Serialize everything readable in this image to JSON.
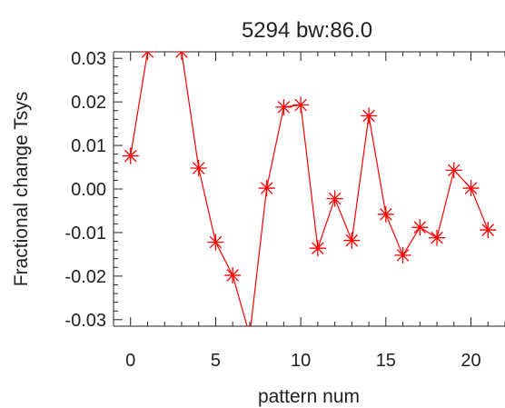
{
  "chart_data": {
    "type": "line",
    "title": "5294 bw:86.0",
    "xlabel": "pattern num",
    "ylabel": "Fractional change Tsys",
    "xlim": [
      -1,
      22
    ],
    "ylim": [
      -0.0315,
      0.0315
    ],
    "x_ticks": [
      0,
      5,
      10,
      15,
      20
    ],
    "x_tick_labels": [
      "0",
      "5",
      "10",
      "15",
      "20"
    ],
    "y_ticks": [
      -0.03,
      -0.02,
      -0.01,
      0.0,
      0.01,
      0.02,
      0.03
    ],
    "y_tick_labels": [
      "-0.03",
      "-0.02",
      "-0.01",
      "0.00",
      "0.01",
      "0.02",
      "0.03"
    ],
    "grid": false,
    "series": [
      {
        "color": "#ff0000",
        "marker": "asterisk",
        "x": [
          0,
          1,
          2,
          3,
          4,
          5,
          6,
          7,
          8,
          9,
          10,
          11,
          12,
          13,
          14,
          15,
          16,
          17,
          18,
          19,
          20,
          21
        ],
        "y": [
          0.0076,
          0.0315,
          0.0336,
          0.0315,
          0.0048,
          -0.0122,
          -0.0198,
          -0.0336,
          0.0002,
          0.0188,
          0.0193,
          -0.0136,
          -0.0022,
          -0.0118,
          0.0168,
          -0.0058,
          -0.0152,
          -0.0088,
          -0.0112,
          0.0043,
          0.0002,
          -0.0094
        ]
      }
    ]
  }
}
